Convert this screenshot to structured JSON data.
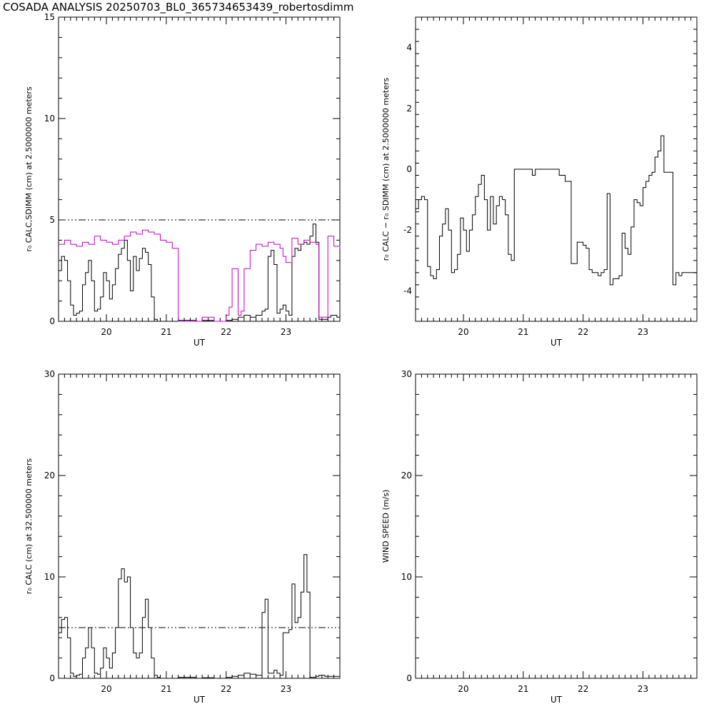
{
  "title": "COSADA ANALYSIS 20250703_BL0_365734653439_robertosdimm",
  "colors": {
    "axis": "#000000",
    "primary": "#000000",
    "secondary": "#c000c0"
  },
  "chart_data": [
    {
      "type": "line",
      "xlabel": "UT",
      "ylabel": "r₀ CALC,SDIMM (cm)  at  2.5000000 meters",
      "xlim": [
        19.2,
        23.9
      ],
      "ylim": [
        0,
        15
      ],
      "xticks": [
        20,
        21,
        22,
        23
      ],
      "yticks": [
        0,
        5,
        10,
        15
      ],
      "reference_line": 5,
      "series": [
        {
          "color": "#000000",
          "x": [
            19.2,
            19.25,
            19.3,
            19.35,
            19.4,
            19.45,
            19.5,
            19.55,
            19.6,
            19.65,
            19.7,
            19.75,
            19.8,
            19.85,
            19.9,
            19.95,
            20.0,
            20.05,
            20.1,
            20.15,
            20.2,
            20.25,
            20.3,
            20.35,
            20.4,
            20.45,
            20.5,
            20.55,
            20.6,
            20.65,
            20.7,
            20.75,
            20.8,
            20.85,
            20.9,
            20.95,
            21.0,
            21.05,
            21.1,
            21.15,
            21.2,
            21.5,
            21.6,
            21.8,
            22.0,
            22.1,
            22.2,
            22.3,
            22.4,
            22.5,
            22.6,
            22.65,
            22.7,
            22.75,
            22.8,
            22.85,
            22.9,
            22.95,
            23.0,
            23.05,
            23.1,
            23.15,
            23.2,
            23.25,
            23.3,
            23.35,
            23.4,
            23.45,
            23.5,
            23.55,
            23.6,
            23.65,
            23.7,
            23.75,
            23.8,
            23.85,
            23.9
          ],
          "y": [
            2.5,
            3.2,
            3.0,
            2.0,
            0.8,
            0.3,
            0.4,
            0.5,
            1.8,
            2.4,
            3.0,
            2.0,
            0.5,
            0.6,
            1.2,
            2.4,
            2.0,
            1.1,
            1.8,
            2.6,
            3.3,
            3.6,
            4.0,
            3.0,
            1.5,
            3.2,
            2.5,
            3.1,
            3.6,
            3.4,
            2.8,
            1.2,
            0.1,
            0.0,
            0.0,
            0.0,
            0.0,
            0.0,
            0.0,
            0.0,
            0.05,
            0.0,
            0.05,
            0.0,
            0.05,
            0.1,
            0.2,
            0.3,
            0.2,
            0.3,
            0.5,
            0.6,
            3.2,
            3.5,
            2.8,
            0.4,
            0.6,
            0.8,
            0.5,
            0.3,
            3.2,
            3.6,
            3.5,
            3.8,
            3.9,
            3.8,
            4.2,
            4.8,
            3.9,
            0.1,
            0.1,
            0.1,
            0.2,
            0.3,
            0.3,
            0.2,
            0.2
          ]
        },
        {
          "color": "#c000c0",
          "x": [
            19.2,
            19.3,
            19.4,
            19.5,
            19.6,
            19.7,
            19.8,
            19.9,
            20.0,
            20.1,
            20.2,
            20.3,
            20.4,
            20.5,
            20.6,
            20.7,
            20.8,
            20.9,
            21.0,
            21.1,
            21.2,
            21.3,
            21.5,
            21.6,
            21.8,
            22.0,
            22.05,
            22.1,
            22.2,
            22.25,
            22.3,
            22.4,
            22.5,
            22.6,
            22.7,
            22.8,
            22.9,
            22.95,
            23.0,
            23.1,
            23.2,
            23.3,
            23.4,
            23.5,
            23.55,
            23.6,
            23.7,
            23.8,
            23.9
          ],
          "y": [
            3.8,
            4.0,
            3.8,
            3.7,
            3.9,
            3.8,
            4.2,
            4.0,
            3.9,
            3.8,
            4.0,
            4.2,
            4.4,
            4.3,
            4.5,
            4.4,
            4.3,
            4.0,
            3.9,
            3.6,
            0.0,
            0.0,
            0.0,
            0.2,
            0.0,
            0.3,
            0.7,
            2.6,
            0.3,
            0.5,
            2.6,
            3.5,
            3.8,
            3.7,
            3.9,
            3.8,
            3.6,
            3.2,
            2.9,
            4.1,
            3.8,
            4.0,
            3.9,
            3.8,
            0.2,
            0.2,
            4.2,
            3.7,
            3.6
          ]
        }
      ]
    },
    {
      "type": "line",
      "xlabel": "UT",
      "ylabel": "r₀ CALC  −  r₀ SDIMM  (cm)  at  2.5000000 meters",
      "xlim": [
        19.2,
        23.9
      ],
      "ylim": [
        -5,
        5
      ],
      "xticks": [
        20,
        21,
        22,
        23
      ],
      "yticks": [
        -4,
        -2,
        0,
        2,
        4
      ],
      "series": [
        {
          "color": "#000000",
          "x": [
            19.2,
            19.25,
            19.3,
            19.35,
            19.4,
            19.45,
            19.5,
            19.55,
            19.6,
            19.65,
            19.7,
            19.75,
            19.8,
            19.85,
            19.9,
            19.95,
            20.0,
            20.05,
            20.1,
            20.15,
            20.2,
            20.25,
            20.3,
            20.35,
            20.4,
            20.45,
            20.5,
            20.55,
            20.6,
            20.65,
            20.7,
            20.75,
            20.8,
            20.85,
            20.9,
            20.95,
            21.0,
            21.05,
            21.1,
            21.15,
            21.2,
            21.3,
            21.4,
            21.5,
            21.55,
            21.6,
            21.7,
            21.8,
            21.9,
            21.95,
            22.0,
            22.05,
            22.1,
            22.15,
            22.2,
            22.25,
            22.3,
            22.35,
            22.4,
            22.45,
            22.5,
            22.55,
            22.6,
            22.65,
            22.7,
            22.75,
            22.8,
            22.85,
            22.9,
            22.95,
            23.0,
            23.05,
            23.1,
            23.15,
            23.2,
            23.25,
            23.3,
            23.35,
            23.4,
            23.45,
            23.5,
            23.55,
            23.6,
            23.65,
            23.7,
            23.75,
            23.8,
            23.85,
            23.9
          ],
          "y": [
            -1.3,
            -1.0,
            -0.9,
            -1.0,
            -3.2,
            -3.5,
            -3.6,
            -3.3,
            -2.2,
            -1.8,
            -1.3,
            -2.0,
            -3.4,
            -3.3,
            -2.8,
            -1.6,
            -2.0,
            -2.7,
            -2.0,
            -1.5,
            -0.9,
            -0.5,
            -0.2,
            -1.0,
            -2.0,
            -0.9,
            -1.8,
            -1.2,
            -0.9,
            -1.0,
            -1.5,
            -2.8,
            -3.0,
            0.0,
            0.0,
            0.0,
            0.0,
            0.0,
            0.0,
            -0.2,
            0.0,
            0.0,
            0.0,
            0.0,
            0.0,
            -0.2,
            -0.4,
            -3.1,
            -2.4,
            -2.4,
            -2.5,
            -2.6,
            -3.3,
            -3.4,
            -3.4,
            -3.5,
            -3.4,
            -3.3,
            -0.8,
            -3.8,
            -3.6,
            -3.6,
            -3.5,
            -2.1,
            -2.6,
            -2.8,
            -1.9,
            -1.0,
            -1.1,
            -1.2,
            -0.6,
            -0.4,
            -0.2,
            -0.1,
            0.4,
            0.6,
            1.1,
            -0.1,
            -0.1,
            -0.1,
            -3.8,
            -3.4,
            -3.5,
            -3.4,
            -3.4,
            -3.4,
            -3.4,
            -3.4,
            -3.4
          ]
        }
      ]
    },
    {
      "type": "line",
      "xlabel": "UT",
      "ylabel": "r₀ CALC (cm)  at  32.500000 meters",
      "xlim": [
        19.2,
        23.9
      ],
      "ylim": [
        0,
        30
      ],
      "xticks": [
        20,
        21,
        22,
        23
      ],
      "yticks": [
        0,
        10,
        20,
        30
      ],
      "reference_line": 5,
      "series": [
        {
          "color": "#000000",
          "x": [
            19.2,
            19.25,
            19.3,
            19.35,
            19.4,
            19.45,
            19.5,
            19.55,
            19.6,
            19.65,
            19.7,
            19.75,
            19.8,
            19.85,
            19.9,
            19.95,
            20.0,
            20.05,
            20.1,
            20.15,
            20.2,
            20.25,
            20.3,
            20.35,
            20.4,
            20.45,
            20.5,
            20.55,
            20.6,
            20.65,
            20.7,
            20.75,
            20.8,
            20.85,
            20.9,
            20.95,
            21.0,
            21.05,
            21.1,
            21.2,
            21.5,
            21.6,
            21.8,
            22.0,
            22.1,
            22.2,
            22.3,
            22.4,
            22.5,
            22.6,
            22.65,
            22.7,
            22.75,
            22.8,
            22.85,
            22.9,
            22.95,
            23.0,
            23.05,
            23.1,
            23.15,
            23.2,
            23.25,
            23.3,
            23.35,
            23.4,
            23.45,
            23.5,
            23.55,
            23.6,
            23.65,
            23.7,
            23.75,
            23.8,
            23.85,
            23.9
          ],
          "y": [
            4.5,
            5.8,
            6.0,
            4.0,
            0.5,
            0.2,
            0.3,
            0.4,
            2.0,
            3.0,
            5.0,
            3.0,
            0.5,
            0.4,
            1.0,
            3.0,
            2.0,
            1.0,
            2.5,
            5.0,
            9.8,
            10.8,
            9.5,
            10.0,
            5.0,
            2.5,
            2.0,
            2.5,
            6.0,
            7.8,
            5.0,
            2.0,
            0.3,
            0.1,
            0.0,
            0.0,
            0.0,
            0.0,
            0.0,
            0.1,
            0.0,
            0.05,
            0.0,
            0.1,
            0.2,
            0.3,
            0.5,
            0.4,
            0.3,
            6.5,
            7.8,
            0.5,
            0.5,
            0.8,
            0.5,
            0.3,
            4.5,
            4.5,
            4.8,
            9.3,
            5.5,
            6.0,
            8.5,
            12.2,
            8.5,
            0.1,
            0.1,
            0.2,
            0.3,
            0.3,
            0.2,
            0.2,
            0.2,
            0.2,
            0.2,
            0.2
          ]
        }
      ]
    },
    {
      "type": "line",
      "xlabel": "UT",
      "ylabel": "WIND SPEED (m/s)",
      "xlim": [
        19.2,
        23.9
      ],
      "ylim": [
        0,
        30
      ],
      "xticks": [
        20,
        21,
        22,
        23
      ],
      "yticks": [
        0,
        10,
        20,
        30
      ],
      "series": []
    }
  ]
}
